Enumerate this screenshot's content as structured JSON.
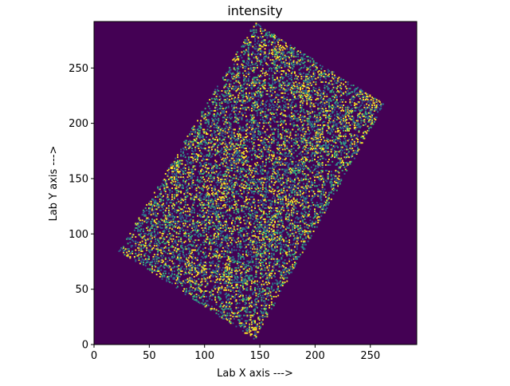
{
  "chart_data": {
    "type": "heatmap",
    "title": "intensity",
    "xlabel": "Lab X axis --->",
    "ylabel": "Lab Y axis --->",
    "xlim": [
      0,
      292
    ],
    "ylim": [
      0,
      292
    ],
    "xticks": [
      0,
      50,
      100,
      150,
      200,
      250
    ],
    "yticks": [
      0,
      50,
      100,
      150,
      200,
      250
    ],
    "grid": false,
    "legend": "none",
    "colormap": "viridis",
    "colors": {
      "background": "#440154",
      "low": "#31688e",
      "mid": "#35b779",
      "high": "#fde725"
    },
    "region": {
      "shape": "rotated-rectangle",
      "corners": [
        [
          22,
          85
        ],
        [
          145,
          5
        ],
        [
          262,
          218
        ],
        [
          145,
          292
        ]
      ]
    },
    "hotspots": [
      [
        90,
        68
      ],
      [
        112,
        140
      ],
      [
        160,
        105
      ],
      [
        175,
        130
      ],
      [
        190,
        230
      ],
      [
        235,
        205
      ],
      [
        200,
        185
      ],
      [
        120,
        60
      ],
      [
        70,
        160
      ],
      [
        260,
        215
      ],
      [
        145,
        15
      ],
      [
        165,
        270
      ],
      [
        100,
        235
      ],
      [
        250,
        230
      ],
      [
        125,
        170
      ]
    ]
  }
}
